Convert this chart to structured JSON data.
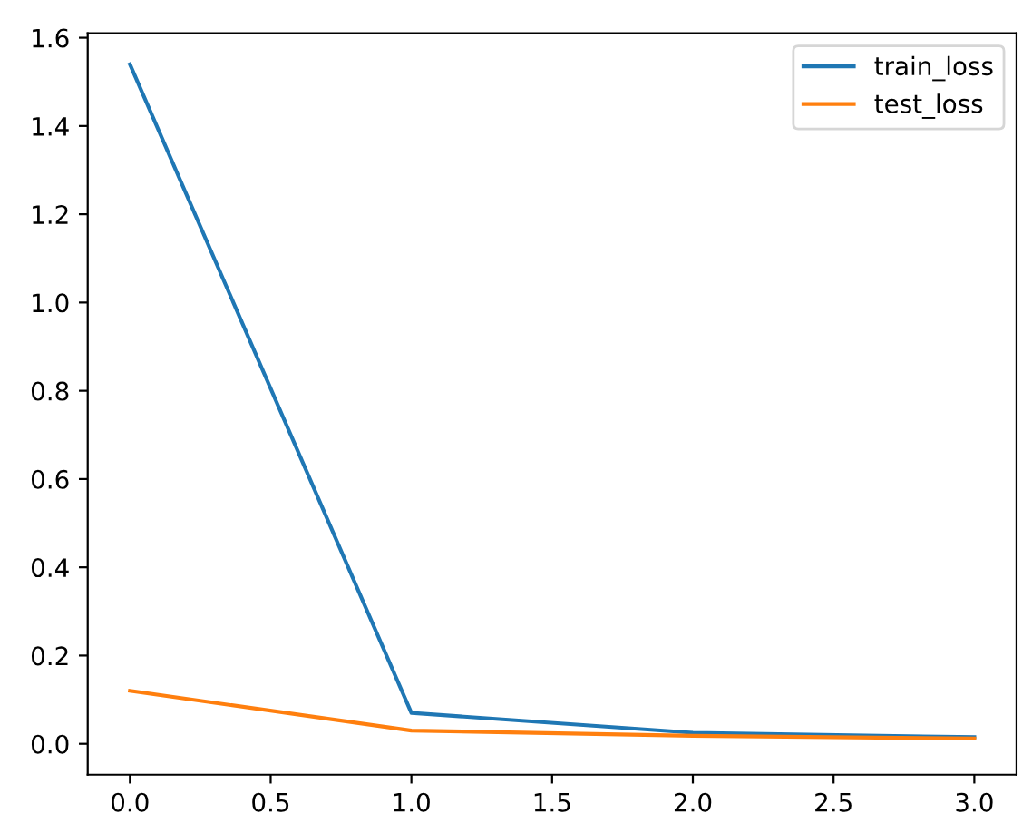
{
  "chart_data": {
    "type": "line",
    "x": [
      0,
      1,
      2,
      3
    ],
    "series": [
      {
        "name": "train_loss",
        "color": "#1f77b4",
        "values": [
          1.54,
          0.07,
          0.025,
          0.015
        ]
      },
      {
        "name": "test_loss",
        "color": "#ff7f0e",
        "values": [
          0.12,
          0.03,
          0.018,
          0.012
        ]
      }
    ],
    "xlim": [
      -0.15,
      3.15
    ],
    "ylim": [
      -0.07,
      1.61
    ],
    "xticks": [
      {
        "value": 0,
        "label": "0.0"
      },
      {
        "value": 0.5,
        "label": "0.5"
      },
      {
        "value": 1,
        "label": "1.0"
      },
      {
        "value": 1.5,
        "label": "1.5"
      },
      {
        "value": 2,
        "label": "2.0"
      },
      {
        "value": 2.5,
        "label": "2.5"
      },
      {
        "value": 3,
        "label": "3.0"
      }
    ],
    "yticks": [
      {
        "value": 0,
        "label": "0.0"
      },
      {
        "value": 0.2,
        "label": "0.2"
      },
      {
        "value": 0.4,
        "label": "0.4"
      },
      {
        "value": 0.6,
        "label": "0.6"
      },
      {
        "value": 0.8,
        "label": "0.8"
      },
      {
        "value": 1.0,
        "label": "1.0"
      },
      {
        "value": 1.2,
        "label": "1.2"
      },
      {
        "value": 1.4,
        "label": "1.4"
      },
      {
        "value": 1.6,
        "label": "1.6"
      }
    ],
    "legend": "top right",
    "grid": false
  }
}
